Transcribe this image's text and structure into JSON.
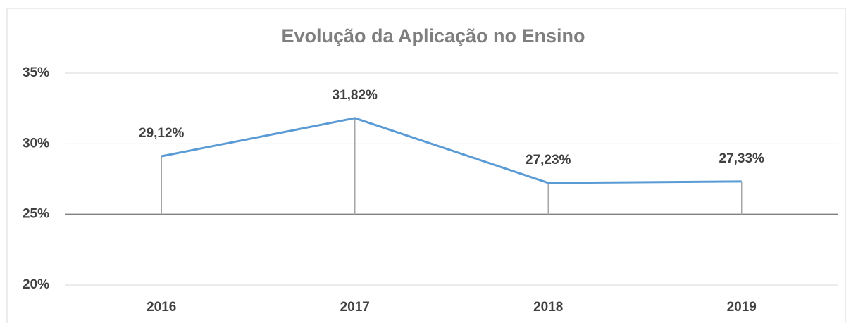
{
  "chart_data": {
    "type": "line",
    "title": "Evolução da Aplicação no Ensino",
    "categories": [
      "2016",
      "2017",
      "2018",
      "2019"
    ],
    "series": [
      {
        "name": "Evolução da Aplicação no Ensino",
        "color": "#5b9bd5",
        "values": [
          29.12,
          31.82,
          27.23,
          27.33
        ],
        "value_labels": [
          "29,12%",
          "31,82%",
          "27,23%",
          "27,33%"
        ]
      }
    ],
    "ylim": [
      20,
      35
    ],
    "yticks": [
      {
        "value": 20,
        "label": "20%"
      },
      {
        "value": 25,
        "label": "25%"
      },
      {
        "value": 30,
        "label": "30%"
      },
      {
        "value": 35,
        "label": "35%"
      }
    ],
    "x_axis_crosses": 25,
    "drop_lines": true,
    "grid": true
  }
}
